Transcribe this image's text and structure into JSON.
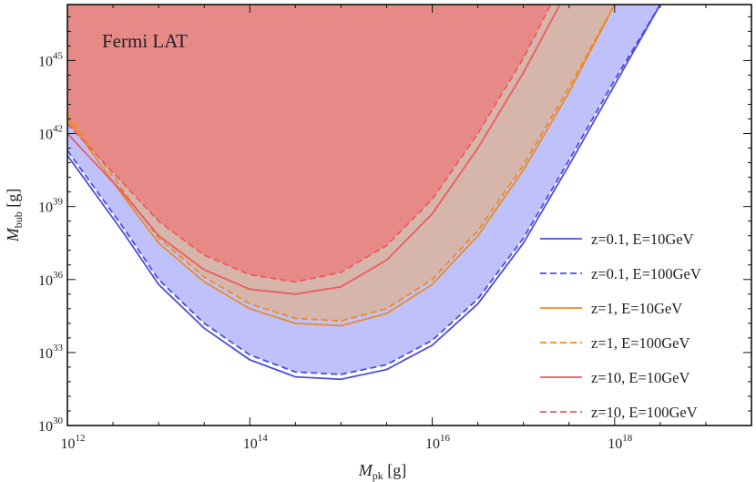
{
  "chart_data": {
    "type": "area",
    "annotation": "Fermi LAT",
    "xlabel": {
      "main": "M",
      "sub": "pk",
      "unit": " [g]"
    },
    "ylabel": {
      "main": "M",
      "sub": "bub",
      "unit": " [g]"
    },
    "x_log10_range": [
      12,
      19.5
    ],
    "y_log10_range": [
      30,
      47.3
    ],
    "x_scale": "log",
    "y_scale": "log",
    "x_ticks": [
      {
        "base": "10",
        "exp": "12",
        "v": 12
      },
      {
        "base": "10",
        "exp": "14",
        "v": 14
      },
      {
        "base": "10",
        "exp": "16",
        "v": 16
      },
      {
        "base": "10",
        "exp": "18",
        "v": 18
      }
    ],
    "y_ticks": [
      {
        "base": "10",
        "exp": "30",
        "v": 30
      },
      {
        "base": "10",
        "exp": "33",
        "v": 33
      },
      {
        "base": "10",
        "exp": "36",
        "v": 36
      },
      {
        "base": "10",
        "exp": "39",
        "v": 39
      },
      {
        "base": "10",
        "exp": "42",
        "v": 42
      },
      {
        "base": "10",
        "exp": "45",
        "v": 45
      }
    ],
    "grid": false,
    "legend_position": "right",
    "series": [
      {
        "name": "z=0.1, E=10GeV",
        "color": "#4a4ee0",
        "dash": "solid",
        "points": [
          [
            12,
            41.1
          ],
          [
            12.6,
            38.0
          ],
          [
            13,
            35.8
          ],
          [
            13.5,
            34.0
          ],
          [
            14,
            32.7
          ],
          [
            14.5,
            32.0
          ],
          [
            15,
            31.9
          ],
          [
            15.5,
            32.3
          ],
          [
            16,
            33.3
          ],
          [
            16.5,
            35.0
          ],
          [
            17,
            37.5
          ],
          [
            17.5,
            40.7
          ],
          [
            18,
            44.0
          ],
          [
            18.5,
            47.3
          ]
        ]
      },
      {
        "name": "z=0.1, E=100GeV",
        "color": "#4a4ee0",
        "dash": "dashed",
        "points": [
          [
            12,
            41.3
          ],
          [
            12.6,
            38.2
          ],
          [
            13,
            36.0
          ],
          [
            13.5,
            34.2
          ],
          [
            14,
            32.9
          ],
          [
            14.5,
            32.2
          ],
          [
            15,
            32.1
          ],
          [
            15.5,
            32.5
          ],
          [
            16,
            33.5
          ],
          [
            16.5,
            35.2
          ],
          [
            17,
            37.7
          ],
          [
            17.5,
            40.9
          ],
          [
            18,
            44.2
          ],
          [
            18.5,
            47.3
          ]
        ]
      },
      {
        "name": "z=1, E=10GeV",
        "color": "#f08a1c",
        "dash": "solid",
        "points": [
          [
            12,
            42.6
          ],
          [
            12.6,
            39.5
          ],
          [
            13,
            37.5
          ],
          [
            13.5,
            35.9
          ],
          [
            14,
            34.8
          ],
          [
            14.5,
            34.2
          ],
          [
            15,
            34.1
          ],
          [
            15.5,
            34.6
          ],
          [
            16,
            35.8
          ],
          [
            16.5,
            37.8
          ],
          [
            17,
            40.5
          ],
          [
            17.5,
            43.7
          ],
          [
            18,
            47.3
          ]
        ]
      },
      {
        "name": "z=1, E=100GeV",
        "color": "#f08a1c",
        "dash": "dashed",
        "points": [
          [
            12,
            42.8
          ],
          [
            12.6,
            39.7
          ],
          [
            13,
            37.7
          ],
          [
            13.5,
            36.1
          ],
          [
            14,
            35.0
          ],
          [
            14.5,
            34.4
          ],
          [
            15,
            34.3
          ],
          [
            15.5,
            34.8
          ],
          [
            16,
            36.0
          ],
          [
            16.5,
            38.0
          ],
          [
            17,
            40.7
          ],
          [
            17.5,
            43.9
          ],
          [
            18,
            47.3
          ]
        ]
      },
      {
        "name": "z=10, E=10GeV",
        "color": "#ef5a5e",
        "dash": "solid",
        "points": [
          [
            12,
            42.0
          ],
          [
            12.6,
            39.6
          ],
          [
            13,
            37.8
          ],
          [
            13.5,
            36.4
          ],
          [
            14,
            35.6
          ],
          [
            14.5,
            35.4
          ],
          [
            15,
            35.7
          ],
          [
            15.5,
            36.8
          ],
          [
            16,
            38.7
          ],
          [
            16.5,
            41.4
          ],
          [
            17,
            44.5
          ],
          [
            17.4,
            47.3
          ]
        ]
      },
      {
        "name": "z=10, E=100GeV",
        "color": "#ef5a5e",
        "dash": "dashed",
        "points": [
          [
            12,
            42.4
          ],
          [
            12.6,
            40.0
          ],
          [
            13,
            38.4
          ],
          [
            13.5,
            37.0
          ],
          [
            14,
            36.2
          ],
          [
            14.5,
            35.9
          ],
          [
            15,
            36.3
          ],
          [
            15.5,
            37.4
          ],
          [
            16,
            39.3
          ],
          [
            16.5,
            42.0
          ],
          [
            17,
            45.1
          ],
          [
            17.3,
            47.3
          ]
        ]
      }
    ]
  }
}
